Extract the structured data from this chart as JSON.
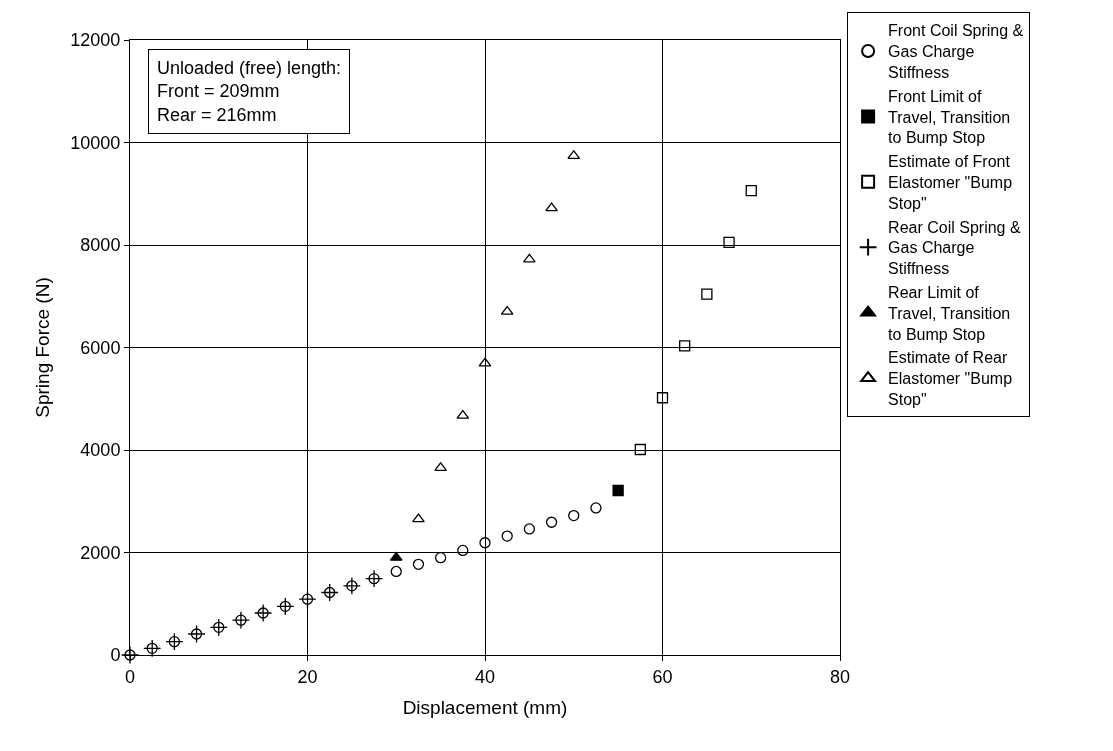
{
  "chart_data": {
    "type": "scatter",
    "xlabel": "Displacement (mm)",
    "ylabel": "Spring Force (N)",
    "xlim": [
      0,
      80
    ],
    "xticks": [
      0,
      20,
      40,
      60,
      80
    ],
    "ylim": [
      0,
      12000
    ],
    "yticks": [
      0,
      2000,
      4000,
      6000,
      8000,
      10000,
      12000
    ],
    "grid": true,
    "legend": "right",
    "annotations": [
      "Unloaded (free) length:\nFront = 209mm\nRear = 216mm"
    ],
    "series": [
      {
        "name": "Front Coil Spring & Gas Charge Stiffness",
        "color": "#000000",
        "marker": "circle",
        "x": [
          0,
          2.5,
          5,
          7.5,
          10,
          12.5,
          15,
          17.5,
          20,
          22.5,
          25,
          27.5,
          30,
          32.5,
          35,
          37.5,
          40,
          42.5,
          45,
          47.5,
          50,
          52.5
        ],
        "values": [
          0,
          130,
          260,
          410,
          540,
          680,
          820,
          950,
          1090,
          1220,
          1350,
          1490,
          1630,
          1770,
          1900,
          2040,
          2190,
          2320,
          2460,
          2590,
          2720,
          2870
        ]
      },
      {
        "name": "Front Limit of Travel, Transition to Bump Stop",
        "color": "#000000",
        "marker": "square",
        "x": [
          55
        ],
        "values": [
          3210
        ]
      },
      {
        "name": "Estimate of Front Elastomer \"Bump Stop\"",
        "color": "#000000",
        "marker": "square",
        "x": [
          57.5,
          60,
          62.5,
          65,
          67.5,
          70
        ],
        "values": [
          4010,
          5020,
          6030,
          7040,
          8050,
          9060
        ]
      },
      {
        "name": "Rear Coil Spring & Gas Charge Stiffness",
        "color": "#000000",
        "marker": "cross",
        "x": [
          0,
          2.5,
          5,
          7.5,
          10,
          12.5,
          15,
          17.5,
          20,
          22.5,
          25,
          27.5
        ],
        "values": [
          0,
          130,
          260,
          410,
          540,
          680,
          820,
          950,
          1090,
          1220,
          1350,
          1490
        ]
      },
      {
        "name": "Rear Limit of Travel, Transition to Bump Stop",
        "color": "#000000",
        "marker": "triangle",
        "x": [
          30
        ],
        "values": [
          1900
        ]
      },
      {
        "name": "Estimate of Rear Elastomer \"Bump Stop\"",
        "color": "#000000",
        "marker": "triangle",
        "x": [
          32.5,
          35,
          37.5,
          40,
          42.5,
          45,
          47.5,
          50
        ],
        "values": [
          2650,
          3650,
          4670,
          5690,
          6700,
          7720,
          8720,
          9740
        ]
      }
    ]
  }
}
